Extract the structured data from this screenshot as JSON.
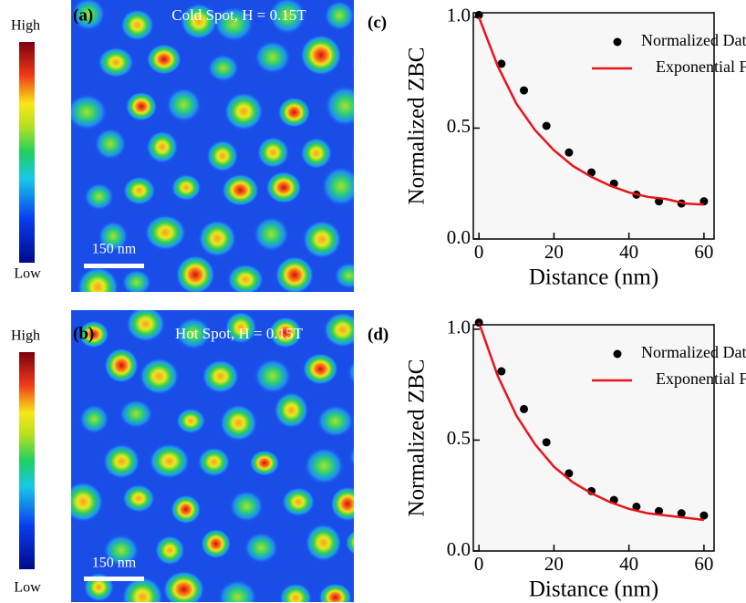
{
  "images": [
    {
      "label": "(a)",
      "title": "Cold Spot, H = 0.15T",
      "scale_bar": "150 nm",
      "colorbar_high": "High",
      "colorbar_low": "Low"
    },
    {
      "label": "(b)",
      "title": "Hot Spot, H = 0.15T",
      "scale_bar": "150 nm",
      "colorbar_high": "High",
      "colorbar_low": "Low"
    }
  ],
  "chart_data": [
    {
      "type": "scatter",
      "label": "(c)",
      "xlabel": "Distance (nm)",
      "ylabel": "Normalized ZBC",
      "xlim": [
        -1.5,
        62.7
      ],
      "xticks": [
        0,
        20,
        40,
        60
      ],
      "ylim": [
        0,
        1.02
      ],
      "yticks": [
        {
          "value": 0,
          "label": "0.0"
        },
        {
          "value": 0.5,
          "label": "0.5"
        },
        {
          "value": 1,
          "label": "1.0"
        }
      ],
      "legend": "upper right",
      "series": [
        {
          "name": "Normalized Data",
          "mode": "markers",
          "color": "#000000",
          "x": [
            0,
            6,
            12,
            18,
            24,
            30,
            36,
            42,
            48,
            54,
            60
          ],
          "values": [
            1.01,
            0.79,
            0.67,
            0.51,
            0.39,
            0.3,
            0.25,
            0.2,
            0.17,
            0.16,
            0.17
          ]
        },
        {
          "name": "Exponential Fit",
          "mode": "line",
          "color": "#e8141a",
          "x": [
            0,
            5,
            10,
            15,
            20,
            25,
            30,
            35,
            40,
            45,
            50,
            55,
            60
          ],
          "values": [
            1.0,
            0.78,
            0.61,
            0.49,
            0.4,
            0.33,
            0.28,
            0.24,
            0.21,
            0.19,
            0.18,
            0.16,
            0.155
          ]
        }
      ]
    },
    {
      "type": "scatter",
      "label": "(d)",
      "xlabel": "Distance (nm)",
      "ylabel": "Normalized ZBC",
      "xlim": [
        -1.5,
        62.7
      ],
      "xticks": [
        0,
        20,
        40,
        60
      ],
      "ylim": [
        0,
        1.02
      ],
      "yticks": [
        {
          "value": 0,
          "label": "0.0"
        },
        {
          "value": 0.5,
          "label": "0.5"
        },
        {
          "value": 1,
          "label": "1.0"
        }
      ],
      "legend": "upper right",
      "series": [
        {
          "name": "Normalized Data",
          "mode": "markers",
          "color": "#000000",
          "x": [
            0,
            6,
            12,
            18,
            24,
            30,
            36,
            42,
            48,
            54,
            60
          ],
          "values": [
            1.03,
            0.81,
            0.64,
            0.49,
            0.35,
            0.27,
            0.23,
            0.2,
            0.18,
            0.17,
            0.16
          ]
        },
        {
          "name": "Exponential Fit",
          "mode": "line",
          "color": "#e8141a",
          "x": [
            0,
            5,
            10,
            15,
            20,
            25,
            30,
            35,
            40,
            45,
            50,
            55,
            60
          ],
          "values": [
            1.03,
            0.79,
            0.61,
            0.48,
            0.38,
            0.31,
            0.26,
            0.22,
            0.19,
            0.17,
            0.16,
            0.15,
            0.14
          ]
        }
      ]
    }
  ]
}
